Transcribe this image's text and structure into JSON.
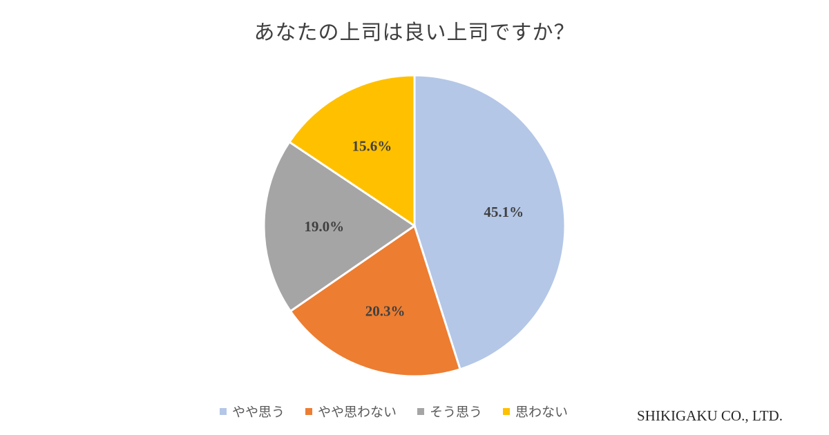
{
  "chart_data": {
    "type": "pie",
    "title": "あなたの上司は良い上司ですか？",
    "categories": [
      "やや思う",
      "やや思わない",
      "そう思う",
      "思わない"
    ],
    "values": [
      45.1,
      20.3,
      19.0,
      15.6
    ],
    "data_labels": [
      "45.1%",
      "20.3%",
      "19.0%",
      "15.6%"
    ],
    "colors": [
      "#b4c7e7",
      "#ed7d31",
      "#a5a5a5",
      "#ffc000"
    ],
    "unit": "%",
    "legend_position": "bottom",
    "start_angle": "12 o'clock, clockwise"
  },
  "brand": {
    "text": "SHIKIGAKU CO., LTD."
  }
}
